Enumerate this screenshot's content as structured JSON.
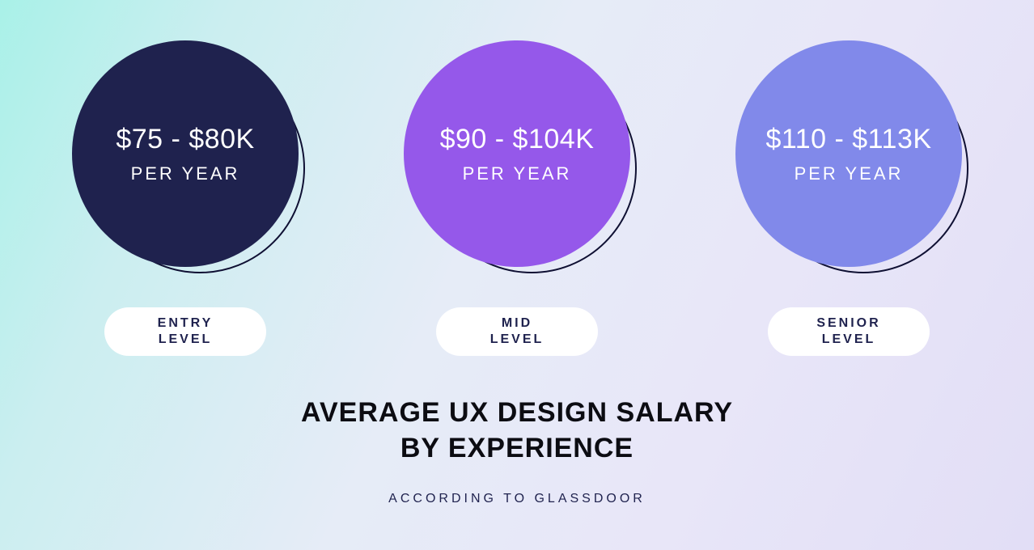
{
  "background": {
    "gradient_css": "linear-gradient(115deg, #a9f1e8 0%, #cbeef0 18%, #e6ecf7 45%, #e8e6f8 70%, #e2def6 100%)"
  },
  "levels": [
    {
      "salary": "$75 - $80K",
      "per_year": "PER YEAR",
      "label": "ENTRY\nLEVEL",
      "circle_color": "#1f224e",
      "outline_color": "#0f1033"
    },
    {
      "salary": "$90 - $104K",
      "per_year": "PER YEAR",
      "label": "MID\nLEVEL",
      "circle_color": "#9558ea",
      "outline_color": "#0f1033"
    },
    {
      "salary": "$110 - $113K",
      "per_year": "PER YEAR",
      "label": "SENIOR\nLEVEL",
      "circle_color": "#8189ea",
      "outline_color": "#0f1033"
    }
  ],
  "pill": {
    "bg": "#ffffff",
    "text_color": "#1f224e"
  },
  "title": {
    "text": "AVERAGE UX DESIGN SALARY\nBY EXPERIENCE",
    "color": "#0c0c12"
  },
  "source": {
    "text": "ACCORDING TO GLASSDOOR",
    "color": "#1f224e"
  },
  "typography": {
    "salary_fontsize": 34,
    "per_year_fontsize": 22,
    "pill_fontsize": 16,
    "title_fontsize": 34,
    "source_fontsize": 16
  }
}
